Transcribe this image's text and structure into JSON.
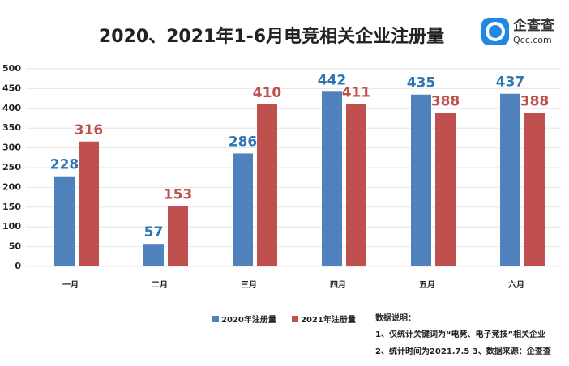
{
  "chart_data": {
    "type": "bar",
    "title": "2020、2021年1-6月电竞相关企业注册量",
    "logo_text": "企查查",
    "logo_domain": "Qcc.com",
    "categories": [
      "一月",
      "二月",
      "三月",
      "四月",
      "五月",
      "六月"
    ],
    "series": [
      {
        "name": "2020年注册量",
        "color": "#4f81bd",
        "label_color": "#2e75b6",
        "values": [
          228,
          57,
          286,
          442,
          435,
          437
        ]
      },
      {
        "name": "2021年注册量",
        "color": "#c0504d",
        "label_color": "#c0504d",
        "values": [
          316,
          153,
          410,
          411,
          388,
          388
        ]
      }
    ],
    "ylim": [
      0,
      500
    ],
    "yticks": [
      0,
      50,
      100,
      150,
      200,
      250,
      300,
      350,
      400,
      450,
      500
    ],
    "grid": true,
    "notes_title": "数据说明：",
    "notes": [
      "1、仅统计关键词为“电竞、电子竞技”相关企业",
      "2、统计时间为2021.7.5 3、数据来源：企查查"
    ]
  }
}
